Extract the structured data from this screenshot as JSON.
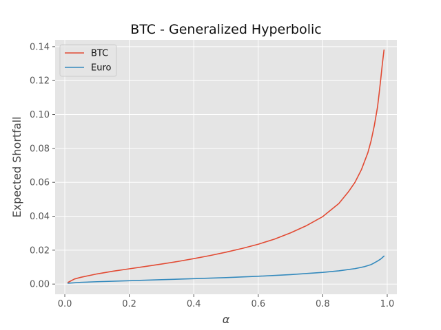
{
  "chart_data": {
    "type": "line",
    "title": "BTC - Generalized Hyperbolic",
    "xlabel": "α",
    "ylabel": "Expected Shortfall",
    "xlim": [
      -0.03,
      1.03
    ],
    "ylim": [
      -0.006,
      0.144
    ],
    "x_ticks": [
      0.0,
      0.2,
      0.4,
      0.6,
      0.8,
      1.0
    ],
    "x_tick_labels": [
      "0.0",
      "0.2",
      "0.4",
      "0.6",
      "0.8",
      "1.0"
    ],
    "y_ticks": [
      0.0,
      0.02,
      0.04,
      0.06,
      0.08,
      0.1,
      0.12,
      0.14
    ],
    "y_tick_labels": [
      "0.00",
      "0.02",
      "0.04",
      "0.06",
      "0.08",
      "0.10",
      "0.12",
      "0.14"
    ],
    "grid": true,
    "style": "ggplot",
    "background_color": "#e5e5e5",
    "grid_color": "#ffffff",
    "legend_position": "top-left",
    "series": [
      {
        "name": "BTC",
        "color": "#e24a33",
        "x": [
          0.01,
          0.03,
          0.05,
          0.1,
          0.15,
          0.2,
          0.25,
          0.3,
          0.35,
          0.4,
          0.45,
          0.5,
          0.55,
          0.6,
          0.65,
          0.7,
          0.75,
          0.8,
          0.85,
          0.88,
          0.9,
          0.92,
          0.94,
          0.95,
          0.96,
          0.97,
          0.975,
          0.98,
          0.985,
          0.99
        ],
        "y": [
          0.001,
          0.003,
          0.004,
          0.006,
          0.0076,
          0.009,
          0.0104,
          0.0118,
          0.0133,
          0.015,
          0.0168,
          0.0188,
          0.021,
          0.0235,
          0.0265,
          0.0302,
          0.0345,
          0.0398,
          0.0475,
          0.0545,
          0.06,
          0.0675,
          0.0775,
          0.0845,
          0.0935,
          0.1045,
          0.1125,
          0.121,
          0.13,
          0.138
        ]
      },
      {
        "name": "Euro",
        "color": "#348abd",
        "x": [
          0.01,
          0.05,
          0.1,
          0.2,
          0.3,
          0.4,
          0.5,
          0.6,
          0.7,
          0.8,
          0.85,
          0.9,
          0.93,
          0.95,
          0.96,
          0.97,
          0.98,
          0.99
        ],
        "y": [
          0.0005,
          0.001,
          0.0014,
          0.002,
          0.0026,
          0.0032,
          0.0038,
          0.0046,
          0.0056,
          0.0069,
          0.0078,
          0.0091,
          0.0103,
          0.0115,
          0.0125,
          0.0136,
          0.0148,
          0.0165
        ]
      }
    ]
  }
}
